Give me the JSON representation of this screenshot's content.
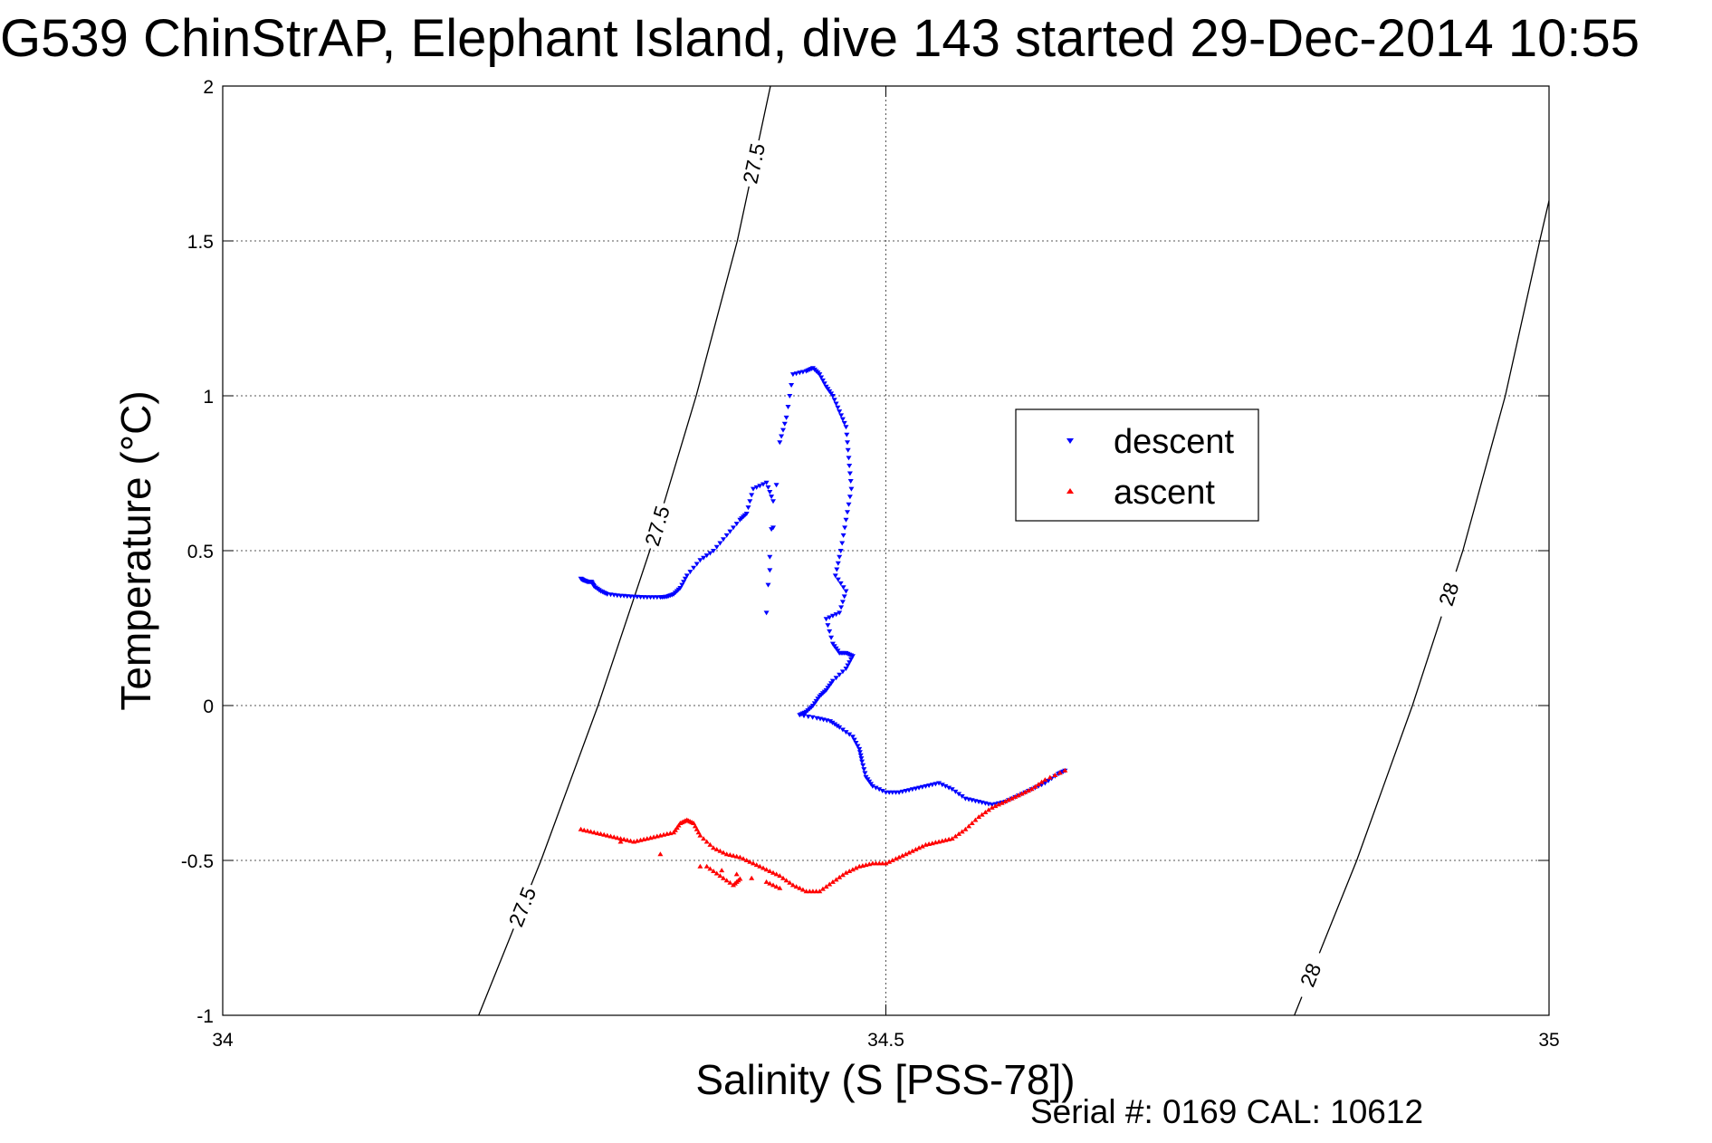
{
  "chart_data": {
    "type": "scatter",
    "title": "G539 ChinStrAP, Elephant Island, dive 143 started 29-Dec-2014 10:55",
    "xlabel": "Salinity (S [PSS-78])",
    "ylabel": "Temperature (°C)",
    "xlim": [
      34,
      35
    ],
    "ylim": [
      -1,
      2
    ],
    "x_ticks": [
      34,
      34.5,
      35
    ],
    "x_tick_labels": [
      "34",
      "34.5",
      "35"
    ],
    "y_ticks": [
      -1,
      -0.5,
      0,
      0.5,
      1,
      1.5,
      2
    ],
    "y_tick_labels": [
      "-1",
      "-0.5",
      "0",
      "0.5",
      "1",
      "1.5",
      "2"
    ],
    "grid": true,
    "legend_position": "center-right",
    "footer": "Serial #: 0169 CAL: 10612",
    "isopycnals": [
      {
        "label": "27.5",
        "points": [
          [
            34.193,
            -1.0
          ],
          [
            34.24,
            -0.5
          ],
          [
            34.283,
            0.0
          ],
          [
            34.322,
            0.5
          ],
          [
            34.357,
            1.0
          ],
          [
            34.388,
            1.5
          ],
          [
            34.413,
            2.0
          ]
        ]
      },
      {
        "label": "28",
        "points": [
          [
            34.808,
            -1.0
          ],
          [
            34.855,
            -0.5
          ],
          [
            34.897,
            0.0
          ],
          [
            34.935,
            0.5
          ],
          [
            34.967,
            1.0
          ],
          [
            34.993,
            1.5
          ],
          [
            35.0,
            1.63
          ]
        ]
      }
    ],
    "series": [
      {
        "name": "descent",
        "color": "#0000ff",
        "marker": "triangle-down",
        "points": [
          [
            34.27,
            0.41
          ],
          [
            34.272,
            0.405
          ],
          [
            34.275,
            0.4
          ],
          [
            34.278,
            0.4
          ],
          [
            34.28,
            0.385
          ],
          [
            34.285,
            0.37
          ],
          [
            34.29,
            0.36
          ],
          [
            34.3,
            0.355
          ],
          [
            34.31,
            0.352
          ],
          [
            34.32,
            0.35
          ],
          [
            34.33,
            0.35
          ],
          [
            34.335,
            0.352
          ],
          [
            34.34,
            0.36
          ],
          [
            34.345,
            0.38
          ],
          [
            34.35,
            0.42
          ],
          [
            34.36,
            0.47
          ],
          [
            34.37,
            0.5
          ],
          [
            34.38,
            0.55
          ],
          [
            34.39,
            0.6
          ],
          [
            34.395,
            0.62
          ],
          [
            34.4,
            0.7
          ],
          [
            34.41,
            0.72
          ],
          [
            34.415,
            0.66
          ],
          [
            34.41,
            0.3
          ],
          [
            34.42,
            0.85
          ],
          [
            34.425,
            0.93
          ],
          [
            34.43,
            1.07
          ],
          [
            34.44,
            1.08
          ],
          [
            34.445,
            1.09
          ],
          [
            34.45,
            1.07
          ],
          [
            34.455,
            1.03
          ],
          [
            34.46,
            1.0
          ],
          [
            34.465,
            0.95
          ],
          [
            34.47,
            0.9
          ],
          [
            34.472,
            0.8
          ],
          [
            34.474,
            0.7
          ],
          [
            34.47,
            0.6
          ],
          [
            34.466,
            0.5
          ],
          [
            34.462,
            0.42
          ],
          [
            34.47,
            0.37
          ],
          [
            34.465,
            0.3
          ],
          [
            34.455,
            0.28
          ],
          [
            34.46,
            0.2
          ],
          [
            34.465,
            0.17
          ],
          [
            34.47,
            0.17
          ],
          [
            34.475,
            0.16
          ],
          [
            34.47,
            0.12
          ],
          [
            34.46,
            0.08
          ],
          [
            34.455,
            0.05
          ],
          [
            34.45,
            0.03
          ],
          [
            34.445,
            0.0
          ],
          [
            34.44,
            -0.02
          ],
          [
            34.435,
            -0.03
          ],
          [
            34.448,
            -0.04
          ],
          [
            34.458,
            -0.05
          ],
          [
            34.465,
            -0.07
          ],
          [
            34.475,
            -0.1
          ],
          [
            34.48,
            -0.14
          ],
          [
            34.482,
            -0.18
          ],
          [
            34.485,
            -0.23
          ],
          [
            34.49,
            -0.26
          ],
          [
            34.5,
            -0.28
          ],
          [
            34.51,
            -0.28
          ],
          [
            34.52,
            -0.27
          ],
          [
            34.53,
            -0.26
          ],
          [
            34.54,
            -0.25
          ],
          [
            34.55,
            -0.27
          ],
          [
            34.56,
            -0.3
          ],
          [
            34.57,
            -0.31
          ],
          [
            34.58,
            -0.32
          ],
          [
            34.59,
            -0.31
          ],
          [
            34.6,
            -0.29
          ],
          [
            34.61,
            -0.27
          ],
          [
            34.62,
            -0.25
          ],
          [
            34.63,
            -0.22
          ],
          [
            34.635,
            -0.21
          ]
        ]
      },
      {
        "name": "ascent",
        "color": "#ff0000",
        "marker": "triangle-up",
        "points": [
          [
            34.635,
            -0.21
          ],
          [
            34.62,
            -0.24
          ],
          [
            34.61,
            -0.27
          ],
          [
            34.6,
            -0.29
          ],
          [
            34.59,
            -0.31
          ],
          [
            34.58,
            -0.33
          ],
          [
            34.57,
            -0.36
          ],
          [
            34.56,
            -0.4
          ],
          [
            34.55,
            -0.43
          ],
          [
            34.54,
            -0.44
          ],
          [
            34.53,
            -0.45
          ],
          [
            34.52,
            -0.47
          ],
          [
            34.51,
            -0.49
          ],
          [
            34.5,
            -0.51
          ],
          [
            34.49,
            -0.51
          ],
          [
            34.48,
            -0.52
          ],
          [
            34.47,
            -0.54
          ],
          [
            34.46,
            -0.57
          ],
          [
            34.45,
            -0.6
          ],
          [
            34.44,
            -0.6
          ],
          [
            34.43,
            -0.58
          ],
          [
            34.42,
            -0.55
          ],
          [
            34.41,
            -0.53
          ],
          [
            34.4,
            -0.51
          ],
          [
            34.39,
            -0.49
          ],
          [
            34.38,
            -0.48
          ],
          [
            34.37,
            -0.46
          ],
          [
            34.36,
            -0.42
          ],
          [
            34.355,
            -0.38
          ],
          [
            34.35,
            -0.37
          ],
          [
            34.345,
            -0.38
          ],
          [
            34.34,
            -0.41
          ],
          [
            34.33,
            -0.42
          ],
          [
            34.32,
            -0.43
          ],
          [
            34.31,
            -0.44
          ],
          [
            34.3,
            -0.43
          ],
          [
            34.29,
            -0.42
          ],
          [
            34.28,
            -0.41
          ],
          [
            34.27,
            -0.4
          ],
          [
            34.39,
            -0.56
          ],
          [
            34.385,
            -0.58
          ],
          [
            34.375,
            -0.55
          ],
          [
            34.365,
            -0.52
          ],
          [
            34.41,
            -0.57
          ],
          [
            34.42,
            -0.59
          ]
        ]
      }
    ]
  }
}
